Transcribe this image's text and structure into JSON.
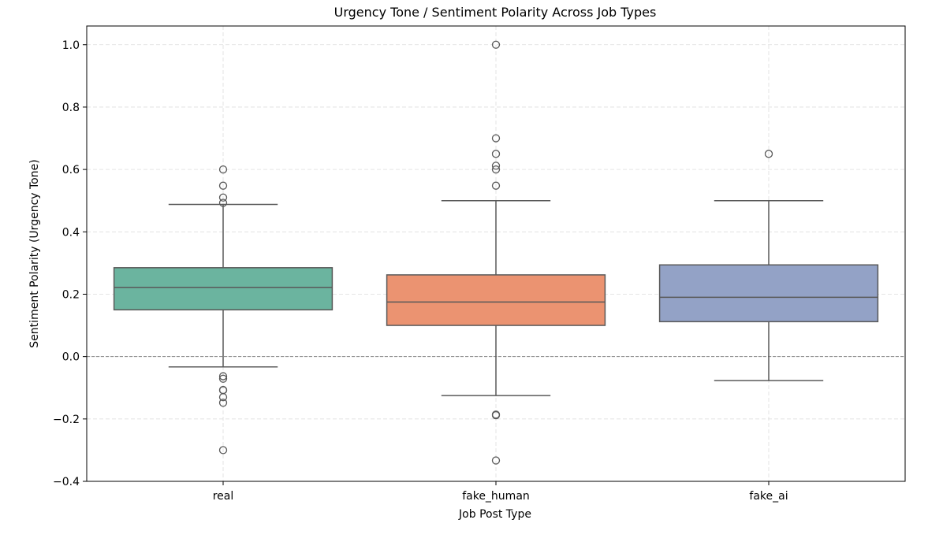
{
  "chart_data": {
    "type": "box",
    "title": "Urgency Tone / Sentiment Polarity Across Job Types",
    "xlabel": "Job Post Type",
    "ylabel": "Sentiment Polarity (Urgency Tone)",
    "ylim": [
      -0.4,
      1.06
    ],
    "yticks": [
      -0.4,
      -0.2,
      0.0,
      0.2,
      0.4,
      0.6,
      0.8,
      1.0
    ],
    "ytick_labels": [
      "−0.4",
      "−0.2",
      "0.0",
      "0.2",
      "0.4",
      "0.6",
      "0.8",
      "1.0"
    ],
    "grid": true,
    "reference_line": 0.0,
    "categories": [
      "real",
      "fake_human",
      "fake_ai"
    ],
    "boxes": [
      {
        "category": "real",
        "color": "#6bb49f",
        "whisker_low": -0.033,
        "q1": 0.15,
        "median": 0.222,
        "q3": 0.285,
        "whisker_high": 0.488,
        "outliers": [
          0.6,
          0.548,
          0.51,
          0.493,
          -0.063,
          -0.071,
          -0.107,
          -0.108,
          -0.13,
          -0.148,
          -0.3
        ]
      },
      {
        "category": "fake_human",
        "color": "#eb9371",
        "whisker_low": -0.125,
        "q1": 0.1,
        "median": 0.175,
        "q3": 0.262,
        "whisker_high": 0.5,
        "outliers": [
          1.0,
          0.7,
          0.65,
          0.612,
          0.6,
          0.548,
          -0.186,
          -0.188,
          -0.333
        ]
      },
      {
        "category": "fake_ai",
        "color": "#93a2c6",
        "whisker_low": -0.077,
        "q1": 0.112,
        "median": 0.19,
        "q3": 0.294,
        "whisker_high": 0.5,
        "outliers": [
          0.65
        ]
      }
    ]
  }
}
